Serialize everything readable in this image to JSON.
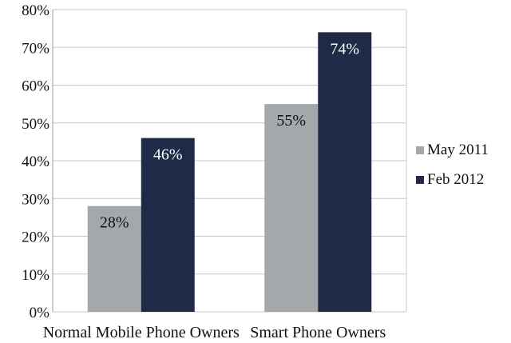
{
  "chart_data": {
    "type": "bar",
    "categories": [
      "Normal Mobile Phone Owners",
      "Smart Phone Owners"
    ],
    "series": [
      {
        "name": "May 2011",
        "values": [
          28,
          55
        ],
        "labels": [
          "28%",
          "55%"
        ],
        "color": "#a5a8ab",
        "label_color": "#111111"
      },
      {
        "name": "Feb 2012",
        "values": [
          46,
          74
        ],
        "labels": [
          "46%",
          "74%"
        ],
        "color": "#1f2a47",
        "label_color": "#ffffff"
      }
    ],
    "ylim": [
      0,
      80
    ],
    "yticks": [
      0,
      10,
      20,
      30,
      40,
      50,
      60,
      70,
      80
    ],
    "ytick_labels": [
      "0%",
      "10%",
      "20%",
      "30%",
      "40%",
      "50%",
      "60%",
      "70%",
      "80%"
    ],
    "grid": true,
    "grid_color": "#c8c8c8",
    "legend_position": "right",
    "title": "",
    "xlabel": "",
    "ylabel": ""
  }
}
